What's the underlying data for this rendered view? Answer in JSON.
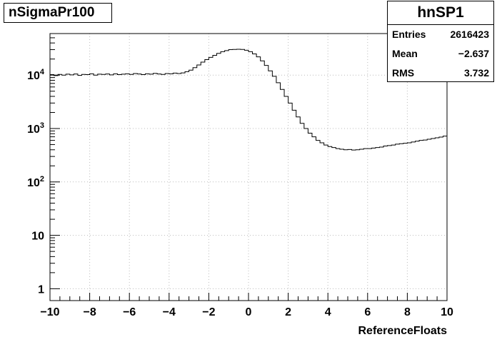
{
  "histogram_title": "nSigmaPr100",
  "stats": {
    "name": "hnSP1",
    "entries_label": "Entries",
    "entries_value": "2616423",
    "mean_label": "Mean",
    "mean_value": "−2.637",
    "rms_label": "RMS",
    "rms_value": "3.732"
  },
  "chart_data": {
    "type": "histogram",
    "title": "nSigmaPr100",
    "xlabel": "ReferenceFloats",
    "ylabel": "",
    "xlim": [
      -10,
      10
    ],
    "ylim": [
      0.6,
      60000
    ],
    "log_y": true,
    "grid": true,
    "x_ticks": [
      -10,
      -8,
      -6,
      -4,
      -2,
      0,
      2,
      4,
      6,
      8,
      10
    ],
    "x_tick_labels": [
      "−10",
      "−8",
      "−6",
      "−4",
      "−2",
      "0",
      "2",
      "4",
      "6",
      "8",
      "10"
    ],
    "y_ticks": [
      1,
      10,
      100,
      1000,
      10000
    ],
    "y_tick_labels": [
      "1",
      "10",
      "10^2",
      "10^3",
      "10^4"
    ],
    "bin_width": 0.2,
    "bin_edges_start": -10,
    "values": [
      10200,
      9800,
      10300,
      10000,
      10400,
      10100,
      10500,
      9900,
      10300,
      10200,
      10600,
      10000,
      10400,
      10300,
      10500,
      10100,
      10600,
      10200,
      10400,
      10600,
      10300,
      10700,
      10500,
      10200,
      10600,
      10400,
      10800,
      10500,
      10300,
      10700,
      10600,
      10900,
      10700,
      11000,
      11600,
      12400,
      13800,
      15500,
      17500,
      19500,
      21500,
      23500,
      25500,
      27500,
      28800,
      30000,
      30200,
      30500,
      30200,
      29200,
      27500,
      25000,
      22000,
      18500,
      15200,
      12000,
      9500,
      7200,
      5400,
      4000,
      3000,
      2200,
      1650,
      1250,
      1000,
      820,
      700,
      600,
      540,
      490,
      460,
      440,
      420,
      410,
      400,
      405,
      395,
      400,
      410,
      420,
      420,
      430,
      440,
      450,
      470,
      480,
      490,
      510,
      520,
      530,
      540,
      560,
      580,
      600,
      610,
      630,
      650,
      670,
      690,
      720
    ]
  }
}
